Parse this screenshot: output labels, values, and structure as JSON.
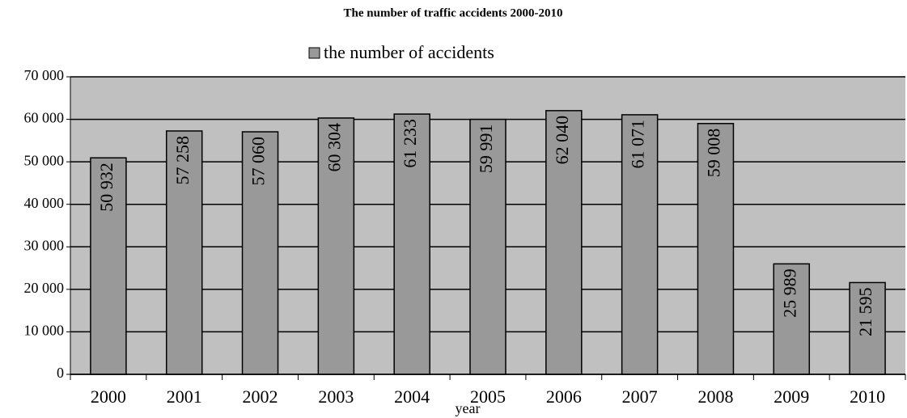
{
  "chart_data": {
    "type": "bar",
    "title": "The number of traffic accidents 2000-2010",
    "x_label": "year",
    "categories": [
      "2000",
      "2001",
      "2002",
      "2003",
      "2004",
      "2005",
      "2006",
      "2007",
      "2008",
      "2009",
      "2010"
    ],
    "series": [
      {
        "name": "the number of accidents",
        "color": "#999999",
        "values": [
          50932,
          57258,
          57060,
          60304,
          61233,
          59991,
          62040,
          61071,
          59008,
          25989,
          21595
        ],
        "value_labels": [
          "50 932",
          "57 258",
          "57 060",
          "60 304",
          "61 233",
          "59 991",
          "62 040",
          "61 071",
          "59 008",
          "25 989",
          "21 595"
        ]
      }
    ],
    "ylim": [
      0,
      70000
    ],
    "yticks": [
      0,
      {
        "value": 10000,
        "label": "10 000"
      },
      {
        "value": 20000,
        "label": "20 000"
      },
      {
        "value": 30000,
        "label": "30 000"
      },
      {
        "value": 40000,
        "label": "40 000"
      },
      {
        "value": 50000,
        "label": "50 000"
      },
      {
        "value": 60000,
        "label": "60 000"
      },
      {
        "value": 70000,
        "label": "70 000"
      }
    ],
    "grid": true,
    "plot_background": "#c0c0c0",
    "legend": "top"
  }
}
